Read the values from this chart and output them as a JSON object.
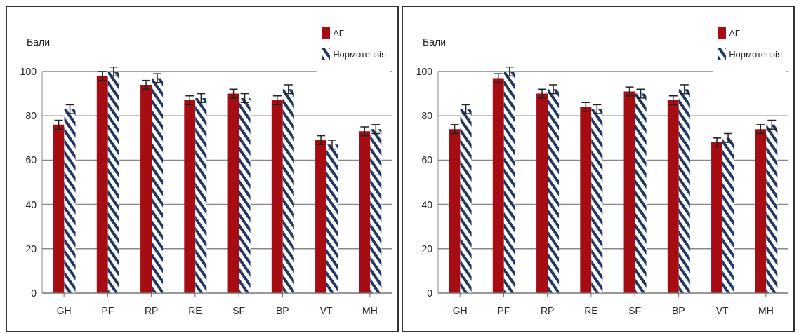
{
  "chart_data": [
    {
      "type": "bar",
      "ylabel": "Бали",
      "categories": [
        "GH",
        "PF",
        "RP",
        "RE",
        "SF",
        "BP",
        "VT",
        "MH"
      ],
      "ylim": [
        0,
        100
      ],
      "yticks": [
        0,
        20,
        40,
        60,
        80,
        100
      ],
      "grid": "y",
      "legend": "top right",
      "series": [
        {
          "name": "АГ",
          "color": "#a50d12",
          "values": [
            76,
            98,
            94,
            87,
            90,
            87,
            69,
            73
          ],
          "errors": [
            2,
            2,
            2,
            2,
            2,
            2,
            2,
            2
          ]
        },
        {
          "name": "Нормотензія",
          "color": "#1f3864",
          "values": [
            83,
            100,
            97,
            88,
            88,
            92,
            67,
            74
          ],
          "errors": [
            2,
            2,
            2,
            2,
            2,
            2,
            2,
            2
          ]
        }
      ]
    },
    {
      "type": "bar",
      "ylabel": "Бали",
      "categories": [
        "GH",
        "PF",
        "RP",
        "RE",
        "SF",
        "BP",
        "VT",
        "MH"
      ],
      "ylim": [
        0,
        100
      ],
      "yticks": [
        0,
        20,
        40,
        60,
        80,
        100
      ],
      "grid": "y",
      "legend": "top right",
      "series": [
        {
          "name": "АГ",
          "color": "#a50d12",
          "values": [
            74,
            97,
            90,
            84,
            91,
            87,
            68,
            74
          ],
          "errors": [
            2,
            2,
            2,
            2,
            2,
            2,
            2,
            2
          ]
        },
        {
          "name": "Нормотензія",
          "color": "#1f3864",
          "values": [
            83,
            100,
            92,
            83,
            90,
            92,
            70,
            76
          ],
          "errors": [
            2,
            2,
            2,
            2,
            2,
            2,
            2,
            2
          ]
        }
      ]
    }
  ]
}
